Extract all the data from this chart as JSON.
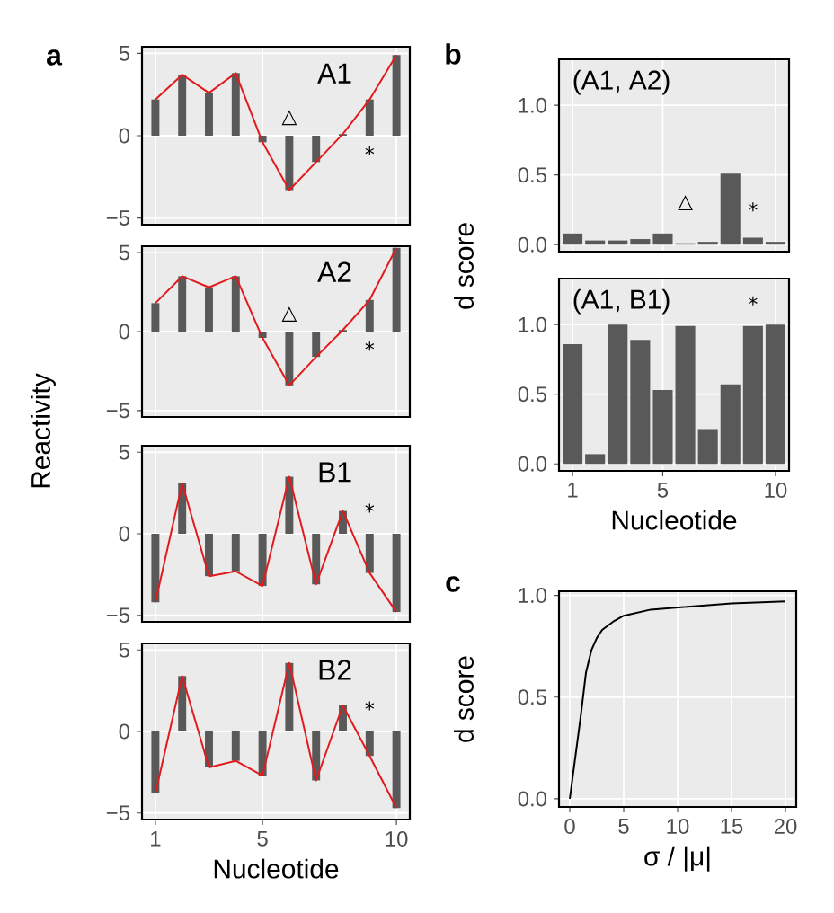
{
  "chart_data": [
    {
      "type": "bar",
      "title": "A1",
      "annotations": [
        "a",
        "△",
        "*"
      ],
      "ylabel": "Reactivity",
      "x": [
        1,
        2,
        3,
        4,
        5,
        6,
        7,
        8,
        9,
        10
      ],
      "series": [
        {
          "type": "bar",
          "color": "#595959",
          "values": [
            2.2,
            3.7,
            2.6,
            3.8,
            -0.4,
            -3.3,
            -1.6,
            0.1,
            2.2,
            4.9
          ]
        },
        {
          "type": "line",
          "color": "#e31a1c",
          "values": [
            2.2,
            3.7,
            2.6,
            3.8,
            -0.4,
            -3.3,
            -1.6,
            0.1,
            2.2,
            4.9
          ]
        }
      ],
      "xlim": [
        0.5,
        10.5
      ],
      "ylim": [
        -5.4,
        5.4
      ],
      "xticks": [
        1,
        5,
        10
      ],
      "yticks": [
        {
          "value": -5,
          "label": "−5"
        },
        0,
        5
      ],
      "grid": true,
      "tick_labels": "y"
    },
    {
      "type": "bar",
      "title": "A2",
      "annotations": [
        "△",
        "*"
      ],
      "x": [
        1,
        2,
        3,
        4,
        5,
        6,
        7,
        8,
        9,
        10
      ],
      "series": [
        {
          "type": "bar",
          "color": "#595959",
          "values": [
            1.8,
            3.5,
            2.8,
            3.5,
            -0.4,
            -3.4,
            -1.6,
            0.1,
            2.0,
            5.3
          ]
        },
        {
          "type": "line",
          "color": "#e31a1c",
          "values": [
            1.8,
            3.5,
            2.8,
            3.5,
            -0.4,
            -3.4,
            -1.6,
            0.1,
            2.0,
            5.3
          ]
        }
      ],
      "xlim": [
        0.5,
        10.5
      ],
      "ylim": [
        -5.4,
        5.4
      ],
      "xticks": [
        1,
        5,
        10
      ],
      "yticks": [
        {
          "value": -5,
          "label": "−5"
        },
        0,
        5
      ],
      "grid": true,
      "tick_labels": "y"
    },
    {
      "type": "bar",
      "title": "B1",
      "annotations": [
        "*"
      ],
      "x": [
        1,
        2,
        3,
        4,
        5,
        6,
        7,
        8,
        9,
        10
      ],
      "series": [
        {
          "type": "bar",
          "color": "#595959",
          "values": [
            -4.2,
            3.1,
            -2.6,
            -2.3,
            -3.2,
            3.5,
            -3.1,
            1.4,
            -2.4,
            -4.8
          ]
        },
        {
          "type": "line",
          "color": "#e31a1c",
          "values": [
            -4.2,
            3.1,
            -2.6,
            -2.3,
            -3.2,
            3.5,
            -3.1,
            1.4,
            -2.4,
            -4.8
          ]
        }
      ],
      "xlim": [
        0.5,
        10.5
      ],
      "ylim": [
        -5.4,
        5.4
      ],
      "xticks": [
        1,
        5,
        10
      ],
      "yticks": [
        {
          "value": -5,
          "label": "−5"
        },
        0,
        5
      ],
      "grid": true,
      "tick_labels": "y"
    },
    {
      "type": "bar",
      "title": "B2",
      "annotations": [
        "*"
      ],
      "xlabel": "Nucleotide",
      "x": [
        1,
        2,
        3,
        4,
        5,
        6,
        7,
        8,
        9,
        10
      ],
      "series": [
        {
          "type": "bar",
          "color": "#595959",
          "values": [
            -3.8,
            3.4,
            -2.2,
            -1.8,
            -2.7,
            4.2,
            -3.0,
            1.6,
            -1.5,
            -4.7
          ]
        },
        {
          "type": "line",
          "color": "#e31a1c",
          "values": [
            -3.8,
            3.4,
            -2.2,
            -1.8,
            -2.7,
            4.2,
            -3.0,
            1.6,
            -1.5,
            -4.7
          ]
        }
      ],
      "xlim": [
        0.5,
        10.5
      ],
      "ylim": [
        -5.4,
        5.4
      ],
      "xticks": [
        1,
        5,
        10
      ],
      "yticks": [
        {
          "value": -5,
          "label": "−5"
        },
        0,
        5
      ],
      "grid": true
    },
    {
      "type": "bar",
      "title": "(A1, A2)",
      "annotations": [
        "b",
        "△",
        "*"
      ],
      "ylabel": "d score",
      "x": [
        1,
        2,
        3,
        4,
        5,
        6,
        7,
        8,
        9,
        10
      ],
      "series": [
        {
          "type": "bar",
          "color": "#595959",
          "values": [
            0.08,
            0.03,
            0.03,
            0.04,
            0.08,
            0.01,
            0.02,
            0.51,
            0.05,
            0.02
          ]
        }
      ],
      "xlim": [
        0.4,
        10.6
      ],
      "ylim": [
        -0.05,
        1.33
      ],
      "xticks": [
        1,
        5,
        10
      ],
      "yticks": [
        {
          "value": 0,
          "label": "0.0"
        },
        {
          "value": 0.5,
          "label": "0.5"
        },
        {
          "value": 1,
          "label": "1.0"
        }
      ],
      "grid": true,
      "tick_labels": "y"
    },
    {
      "type": "bar",
      "title": "(A1, B1)",
      "annotations": [
        "*"
      ],
      "xlabel": "Nucleotide",
      "x": [
        1,
        2,
        3,
        4,
        5,
        6,
        7,
        8,
        9,
        10
      ],
      "series": [
        {
          "type": "bar",
          "color": "#595959",
          "values": [
            0.86,
            0.07,
            1.0,
            0.89,
            0.53,
            0.99,
            0.25,
            0.57,
            0.99,
            1.0
          ]
        }
      ],
      "xlim": [
        0.4,
        10.6
      ],
      "ylim": [
        -0.05,
        1.33
      ],
      "xticks": [
        1,
        5,
        10
      ],
      "yticks": [
        {
          "value": 0,
          "label": "0.0"
        },
        {
          "value": 0.5,
          "label": "0.5"
        },
        {
          "value": 1,
          "label": "1.0"
        }
      ],
      "grid": true
    },
    {
      "type": "line",
      "annotations": [
        "c"
      ],
      "xlabel": "σ / |μ|",
      "ylabel": "d score",
      "x": [
        0,
        0.5,
        1,
        1.5,
        2,
        2.5,
        3,
        4,
        5,
        7.5,
        10,
        15,
        20
      ],
      "series": [
        {
          "color": "#000000",
          "values": [
            0,
            0.2,
            0.4,
            0.62,
            0.73,
            0.79,
            0.83,
            0.87,
            0.9,
            0.93,
            0.94,
            0.96,
            0.97
          ]
        }
      ],
      "xlim": [
        -1,
        21
      ],
      "ylim": [
        -0.04,
        1.02
      ],
      "xticks": [
        0,
        5,
        10,
        15,
        20
      ],
      "yticks": [
        {
          "value": 0,
          "label": "0.0"
        },
        {
          "value": 0.5,
          "label": "0.5"
        },
        {
          "value": 1,
          "label": "1.0"
        }
      ],
      "grid": true
    }
  ]
}
